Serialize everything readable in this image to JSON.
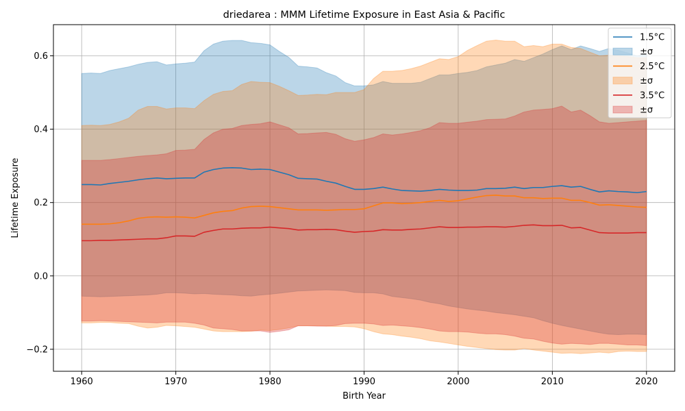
{
  "chart_data": {
    "type": "line",
    "title": "driedarea : MMM Lifetime Exposure in East Asia & Pacific",
    "xlabel": "Birth Year",
    "ylabel": "Lifetime Exposure",
    "xlim": [
      1957,
      2023
    ],
    "ylim": [
      -0.26,
      0.685
    ],
    "xticks": [
      1960,
      1970,
      1980,
      1990,
      2000,
      2010,
      2020
    ],
    "yticks": [
      -0.2,
      0.0,
      0.2,
      0.4,
      0.6
    ],
    "ytick_labels": [
      "−0.2",
      "0.0",
      "0.2",
      "0.4",
      "0.6"
    ],
    "grid": true,
    "legend_position": "top-right",
    "years": [
      1960,
      1961,
      1962,
      1963,
      1964,
      1965,
      1966,
      1967,
      1968,
      1969,
      1970,
      1971,
      1972,
      1973,
      1974,
      1975,
      1976,
      1977,
      1978,
      1979,
      1980,
      1981,
      1982,
      1983,
      1984,
      1985,
      1986,
      1987,
      1988,
      1989,
      1990,
      1991,
      1992,
      1993,
      1994,
      1995,
      1996,
      1997,
      1998,
      1999,
      2000,
      2001,
      2002,
      2003,
      2004,
      2005,
      2006,
      2007,
      2008,
      2009,
      2010,
      2011,
      2012,
      2013,
      2014,
      2015,
      2016,
      2017,
      2018,
      2019,
      2020
    ],
    "series": [
      {
        "name": "1.5°C",
        "band_name": "±σ",
        "color": "#1f77b4",
        "mean": [
          0.249,
          0.249,
          0.248,
          0.252,
          0.255,
          0.258,
          0.262,
          0.265,
          0.267,
          0.265,
          0.266,
          0.267,
          0.267,
          0.283,
          0.29,
          0.294,
          0.295,
          0.294,
          0.29,
          0.291,
          0.29,
          0.283,
          0.276,
          0.266,
          0.265,
          0.264,
          0.258,
          0.253,
          0.244,
          0.236,
          0.236,
          0.238,
          0.242,
          0.237,
          0.233,
          0.232,
          0.231,
          0.233,
          0.236,
          0.234,
          0.233,
          0.233,
          0.234,
          0.238,
          0.238,
          0.239,
          0.242,
          0.238,
          0.241,
          0.241,
          0.244,
          0.246,
          0.242,
          0.244,
          0.236,
          0.229,
          0.232,
          0.23,
          0.229,
          0.227,
          0.23
        ],
        "upper": [
          0.552,
          0.553,
          0.552,
          0.56,
          0.565,
          0.57,
          0.577,
          0.582,
          0.584,
          0.575,
          0.578,
          0.58,
          0.583,
          0.614,
          0.632,
          0.64,
          0.642,
          0.642,
          0.636,
          0.634,
          0.63,
          0.612,
          0.596,
          0.572,
          0.57,
          0.567,
          0.554,
          0.545,
          0.527,
          0.518,
          0.518,
          0.521,
          0.53,
          0.525,
          0.525,
          0.525,
          0.528,
          0.538,
          0.548,
          0.548,
          0.552,
          0.555,
          0.56,
          0.57,
          0.575,
          0.58,
          0.59,
          0.585,
          0.595,
          0.605,
          0.617,
          0.627,
          0.617,
          0.627,
          0.62,
          0.612,
          0.62,
          0.615,
          0.608,
          0.6,
          0.605
        ],
        "lower": [
          -0.055,
          -0.056,
          -0.057,
          -0.056,
          -0.055,
          -0.054,
          -0.053,
          -0.052,
          -0.05,
          -0.046,
          -0.046,
          -0.047,
          -0.049,
          -0.048,
          -0.05,
          -0.051,
          -0.052,
          -0.054,
          -0.055,
          -0.052,
          -0.05,
          -0.047,
          -0.044,
          -0.041,
          -0.04,
          -0.039,
          -0.038,
          -0.039,
          -0.04,
          -0.045,
          -0.046,
          -0.046,
          -0.049,
          -0.056,
          -0.059,
          -0.062,
          -0.066,
          -0.072,
          -0.076,
          -0.082,
          -0.086,
          -0.09,
          -0.093,
          -0.096,
          -0.1,
          -0.103,
          -0.106,
          -0.11,
          -0.114,
          -0.122,
          -0.129,
          -0.135,
          -0.14,
          -0.145,
          -0.15,
          -0.155,
          -0.159,
          -0.16,
          -0.159,
          -0.159,
          -0.16
        ]
      },
      {
        "name": "2.5°C",
        "band_name": "±σ",
        "color": "#ff7f0e",
        "mean": [
          0.141,
          0.141,
          0.141,
          0.142,
          0.145,
          0.15,
          0.157,
          0.16,
          0.161,
          0.16,
          0.161,
          0.16,
          0.158,
          0.165,
          0.172,
          0.176,
          0.178,
          0.185,
          0.189,
          0.19,
          0.189,
          0.186,
          0.183,
          0.18,
          0.18,
          0.18,
          0.179,
          0.18,
          0.181,
          0.181,
          0.183,
          0.191,
          0.199,
          0.199,
          0.197,
          0.198,
          0.2,
          0.203,
          0.206,
          0.203,
          0.205,
          0.21,
          0.215,
          0.219,
          0.22,
          0.218,
          0.218,
          0.213,
          0.213,
          0.211,
          0.212,
          0.212,
          0.206,
          0.206,
          0.2,
          0.193,
          0.194,
          0.192,
          0.19,
          0.188,
          0.187
        ],
        "upper": [
          0.41,
          0.411,
          0.41,
          0.413,
          0.42,
          0.43,
          0.452,
          0.462,
          0.462,
          0.455,
          0.458,
          0.458,
          0.456,
          0.478,
          0.495,
          0.503,
          0.505,
          0.522,
          0.53,
          0.528,
          0.527,
          0.517,
          0.505,
          0.492,
          0.493,
          0.495,
          0.494,
          0.5,
          0.5,
          0.5,
          0.508,
          0.538,
          0.558,
          0.558,
          0.56,
          0.565,
          0.572,
          0.582,
          0.592,
          0.59,
          0.598,
          0.615,
          0.628,
          0.64,
          0.643,
          0.64,
          0.64,
          0.625,
          0.628,
          0.625,
          0.632,
          0.632,
          0.623,
          0.62,
          0.61,
          0.6,
          0.602,
          0.6,
          0.598,
          0.595,
          0.595
        ],
        "lower": [
          -0.128,
          -0.128,
          -0.127,
          -0.127,
          -0.129,
          -0.13,
          -0.137,
          -0.142,
          -0.14,
          -0.135,
          -0.136,
          -0.138,
          -0.14,
          -0.145,
          -0.15,
          -0.152,
          -0.152,
          -0.152,
          -0.151,
          -0.148,
          -0.149,
          -0.146,
          -0.142,
          -0.136,
          -0.136,
          -0.136,
          -0.137,
          -0.138,
          -0.138,
          -0.139,
          -0.144,
          -0.152,
          -0.158,
          -0.16,
          -0.164,
          -0.167,
          -0.171,
          -0.177,
          -0.18,
          -0.184,
          -0.188,
          -0.192,
          -0.195,
          -0.198,
          -0.201,
          -0.202,
          -0.202,
          -0.198,
          -0.202,
          -0.205,
          -0.208,
          -0.211,
          -0.21,
          -0.212,
          -0.21,
          -0.208,
          -0.21,
          -0.206,
          -0.205,
          -0.206,
          -0.206
        ]
      },
      {
        "name": "3.5°C",
        "band_name": "±σ",
        "color": "#d62728",
        "mean": [
          0.096,
          0.096,
          0.097,
          0.097,
          0.098,
          0.099,
          0.1,
          0.101,
          0.101,
          0.104,
          0.109,
          0.109,
          0.108,
          0.119,
          0.124,
          0.128,
          0.128,
          0.13,
          0.131,
          0.131,
          0.133,
          0.131,
          0.129,
          0.125,
          0.126,
          0.126,
          0.127,
          0.126,
          0.122,
          0.119,
          0.121,
          0.122,
          0.126,
          0.125,
          0.125,
          0.127,
          0.128,
          0.131,
          0.134,
          0.132,
          0.132,
          0.133,
          0.133,
          0.134,
          0.134,
          0.133,
          0.135,
          0.138,
          0.139,
          0.137,
          0.137,
          0.138,
          0.131,
          0.132,
          0.125,
          0.118,
          0.117,
          0.117,
          0.117,
          0.118,
          0.118
        ],
        "upper": [
          0.315,
          0.315,
          0.315,
          0.317,
          0.32,
          0.323,
          0.326,
          0.328,
          0.33,
          0.333,
          0.342,
          0.343,
          0.345,
          0.372,
          0.39,
          0.4,
          0.402,
          0.41,
          0.413,
          0.415,
          0.42,
          0.412,
          0.404,
          0.387,
          0.388,
          0.39,
          0.391,
          0.386,
          0.374,
          0.367,
          0.371,
          0.377,
          0.387,
          0.384,
          0.387,
          0.391,
          0.396,
          0.404,
          0.418,
          0.416,
          0.416,
          0.419,
          0.422,
          0.426,
          0.427,
          0.428,
          0.436,
          0.447,
          0.452,
          0.454,
          0.456,
          0.463,
          0.447,
          0.452,
          0.437,
          0.42,
          0.416,
          0.418,
          0.42,
          0.422,
          0.424
        ],
        "lower": [
          -0.123,
          -0.123,
          -0.122,
          -0.123,
          -0.124,
          -0.125,
          -0.126,
          -0.127,
          -0.128,
          -0.126,
          -0.126,
          -0.126,
          -0.129,
          -0.134,
          -0.142,
          -0.144,
          -0.146,
          -0.15,
          -0.15,
          -0.15,
          -0.154,
          -0.151,
          -0.147,
          -0.136,
          -0.136,
          -0.137,
          -0.137,
          -0.135,
          -0.13,
          -0.129,
          -0.129,
          -0.131,
          -0.135,
          -0.134,
          -0.136,
          -0.138,
          -0.141,
          -0.145,
          -0.15,
          -0.152,
          -0.152,
          -0.153,
          -0.156,
          -0.158,
          -0.158,
          -0.16,
          -0.164,
          -0.17,
          -0.172,
          -0.178,
          -0.183,
          -0.186,
          -0.184,
          -0.185,
          -0.187,
          -0.184,
          -0.184,
          -0.186,
          -0.188,
          -0.188,
          -0.19
        ]
      }
    ]
  }
}
